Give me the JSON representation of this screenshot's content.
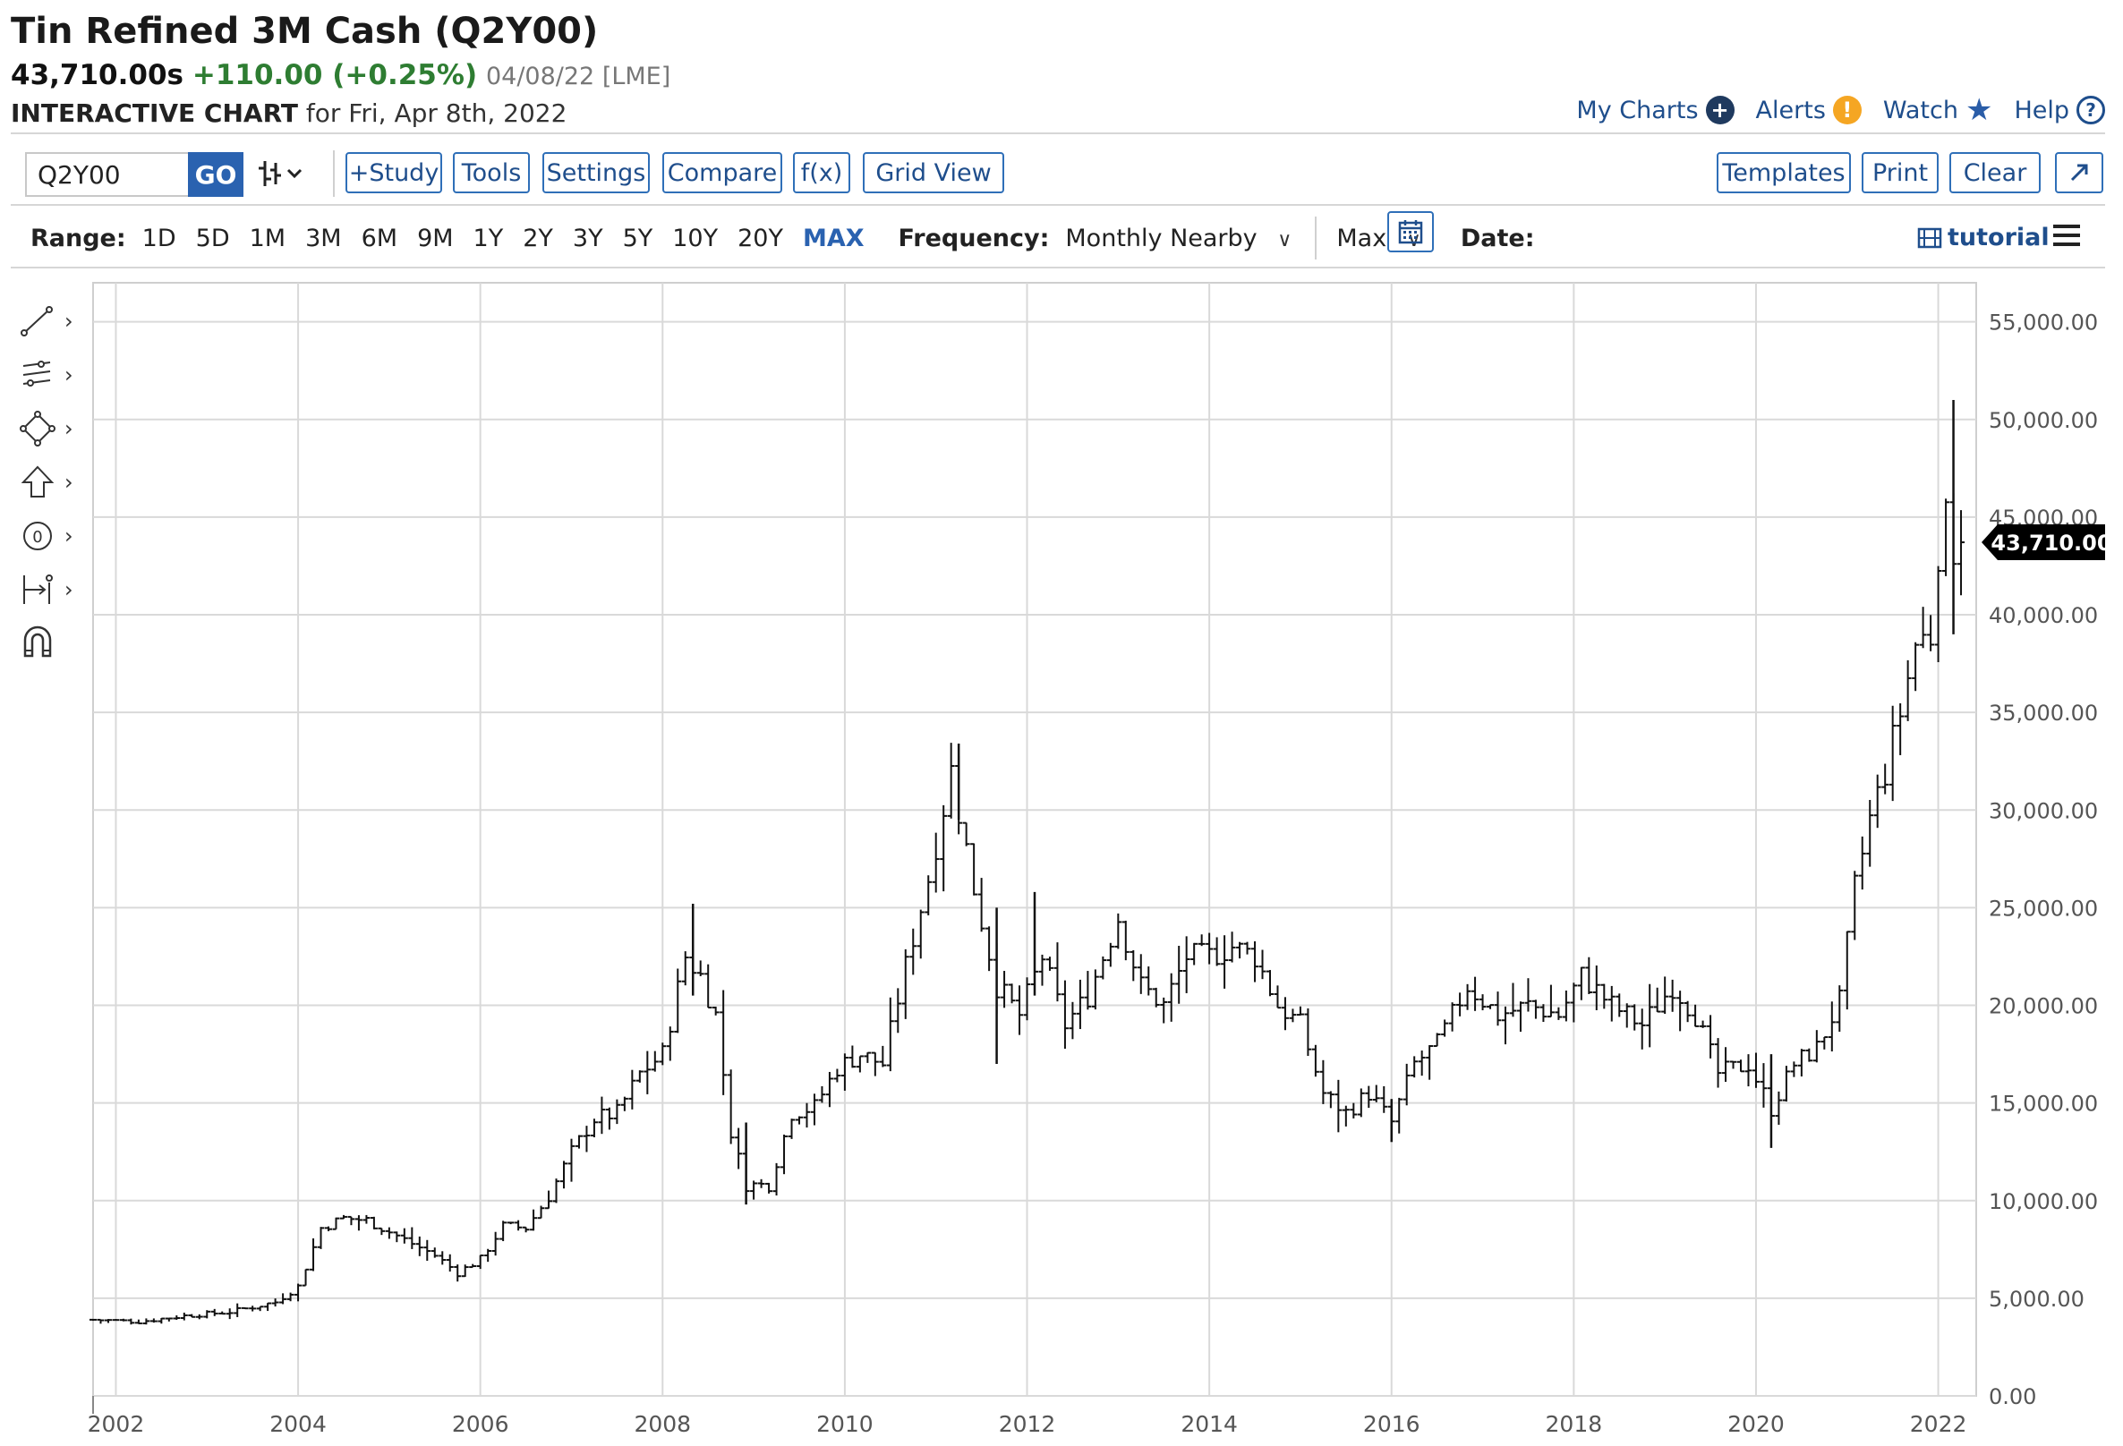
{
  "header": {
    "title": "Tin Refined 3M Cash (Q2Y00)",
    "last_price": "43,710.00s",
    "change": "+110.00 (+0.25%)",
    "quote_date": "04/08/22 [LME]",
    "interactive_chart_label": "INTERACTIVE CHART",
    "for_date": "for Fri, Apr 8th, 2022"
  },
  "top_links": {
    "my_charts": "My Charts",
    "alerts": "Alerts",
    "watch": "Watch",
    "help": "Help"
  },
  "toolbar": {
    "symbol_value": "Q2Y00",
    "go_label": "GO",
    "study_label": "+Study",
    "tools_label": "Tools",
    "settings_label": "Settings",
    "compare_label": "Compare",
    "fx_label": "f(x)",
    "grid_view_label": "Grid View",
    "templates_label": "Templates",
    "print_label": "Print",
    "clear_label": "Clear",
    "expand_icon": "expand-icon"
  },
  "range_bar": {
    "range_label": "Range:",
    "ranges": [
      "1D",
      "5D",
      "1M",
      "3M",
      "6M",
      "9M",
      "1Y",
      "2Y",
      "3Y",
      "5Y",
      "10Y",
      "20Y",
      "MAX"
    ],
    "active_range": "MAX",
    "frequency_label": "Frequency:",
    "frequency_value": "Monthly Nearby",
    "max_value": "Max",
    "date_label": "Date:",
    "tutorial_label": "tutorial"
  },
  "drawing_tools": [
    "line-tool-icon",
    "fib-tool-icon",
    "shape-tool-icon",
    "arrow-tool-icon",
    "annotation-tool-icon",
    "measure-tool-icon",
    "magnet-icon"
  ],
  "colors": {
    "accent_blue": "#2a62b0",
    "positive_green": "#2e7d32",
    "bar_color": "#111111",
    "grid": "#d9d9d9"
  },
  "chart_data": {
    "type": "ohlc",
    "frequency": "monthly",
    "y_ticks": [
      "0.00",
      "5,000.00",
      "10,000.00",
      "15,000.00",
      "20,000.00",
      "25,000.00",
      "30,000.00",
      "35,000.00",
      "40,000.00",
      "45,000.00",
      "50,000.00",
      "55,000.00"
    ],
    "ylim": [
      0,
      57000
    ],
    "x_ticks": [
      "2002",
      "2004",
      "2006",
      "2008",
      "2010",
      "2012",
      "2014",
      "2016",
      "2018",
      "2020",
      "2022"
    ],
    "xlim": [
      "2001-10",
      "2022-06"
    ],
    "last_price_label": "43,710.00",
    "last_price": 43710,
    "grid": true,
    "closes": [
      {
        "d": "2001-10",
        "v": 3900
      },
      {
        "d": "2002-04",
        "v": 3800
      },
      {
        "d": "2002-10",
        "v": 4100
      },
      {
        "d": "2003-04",
        "v": 4300
      },
      {
        "d": "2003-10",
        "v": 4800
      },
      {
        "d": "2004-01",
        "v": 5600
      },
      {
        "d": "2004-04",
        "v": 8600
      },
      {
        "d": "2004-07",
        "v": 9100
      },
      {
        "d": "2004-10",
        "v": 9000
      },
      {
        "d": "2005-01",
        "v": 8400
      },
      {
        "d": "2005-04",
        "v": 7800
      },
      {
        "d": "2005-07",
        "v": 7200
      },
      {
        "d": "2005-10",
        "v": 6300
      },
      {
        "d": "2006-01",
        "v": 7000
      },
      {
        "d": "2006-04",
        "v": 8700
      },
      {
        "d": "2006-07",
        "v": 8600
      },
      {
        "d": "2006-10",
        "v": 10200
      },
      {
        "d": "2007-01",
        "v": 12500
      },
      {
        "d": "2007-04",
        "v": 14200
      },
      {
        "d": "2007-07",
        "v": 14500
      },
      {
        "d": "2007-10",
        "v": 16500
      },
      {
        "d": "2008-01",
        "v": 17500
      },
      {
        "d": "2008-04",
        "v": 22500
      },
      {
        "d": "2008-06",
        "v": 21500
      },
      {
        "d": "2008-08",
        "v": 19500
      },
      {
        "d": "2008-10",
        "v": 13500
      },
      {
        "d": "2008-12",
        "v": 10800
      },
      {
        "d": "2009-03",
        "v": 10800
      },
      {
        "d": "2009-06",
        "v": 14500
      },
      {
        "d": "2009-09",
        "v": 14800
      },
      {
        "d": "2009-12",
        "v": 16800
      },
      {
        "d": "2010-03",
        "v": 17500
      },
      {
        "d": "2010-06",
        "v": 17000
      },
      {
        "d": "2010-09",
        "v": 22000
      },
      {
        "d": "2010-12",
        "v": 26500
      },
      {
        "d": "2011-03",
        "v": 32000
      },
      {
        "d": "2011-06",
        "v": 26000
      },
      {
        "d": "2011-09",
        "v": 21000
      },
      {
        "d": "2011-12",
        "v": 19500
      },
      {
        "d": "2012-03",
        "v": 22500
      },
      {
        "d": "2012-06",
        "v": 19000
      },
      {
        "d": "2012-09",
        "v": 20500
      },
      {
        "d": "2013-01",
        "v": 24500
      },
      {
        "d": "2013-04",
        "v": 21000
      },
      {
        "d": "2013-07",
        "v": 20000
      },
      {
        "d": "2013-10",
        "v": 22500
      },
      {
        "d": "2014-01",
        "v": 22500
      },
      {
        "d": "2014-04",
        "v": 23000
      },
      {
        "d": "2014-07",
        "v": 22500
      },
      {
        "d": "2014-10",
        "v": 20000
      },
      {
        "d": "2015-01",
        "v": 19000
      },
      {
        "d": "2015-04",
        "v": 15500
      },
      {
        "d": "2015-07",
        "v": 14500
      },
      {
        "d": "2015-10",
        "v": 15500
      },
      {
        "d": "2016-01",
        "v": 14000
      },
      {
        "d": "2016-04",
        "v": 17000
      },
      {
        "d": "2016-07",
        "v": 18000
      },
      {
        "d": "2016-11",
        "v": 21000
      },
      {
        "d": "2017-03",
        "v": 19500
      },
      {
        "d": "2017-07",
        "v": 20000
      },
      {
        "d": "2017-11",
        "v": 19500
      },
      {
        "d": "2018-02",
        "v": 21500
      },
      {
        "d": "2018-06",
        "v": 20000
      },
      {
        "d": "2018-10",
        "v": 19000
      },
      {
        "d": "2019-02",
        "v": 21000
      },
      {
        "d": "2019-05",
        "v": 19500
      },
      {
        "d": "2019-08",
        "v": 16500
      },
      {
        "d": "2019-12",
        "v": 17000
      },
      {
        "d": "2020-03",
        "v": 14700
      },
      {
        "d": "2020-06",
        "v": 17000
      },
      {
        "d": "2020-09",
        "v": 17800
      },
      {
        "d": "2020-12",
        "v": 20200
      },
      {
        "d": "2021-02",
        "v": 26000
      },
      {
        "d": "2021-04",
        "v": 29500
      },
      {
        "d": "2021-06",
        "v": 32000
      },
      {
        "d": "2021-08",
        "v": 35000
      },
      {
        "d": "2021-10",
        "v": 38500
      },
      {
        "d": "2021-12",
        "v": 39000
      },
      {
        "d": "2022-01",
        "v": 43500
      },
      {
        "d": "2022-02",
        "v": 44500
      },
      {
        "d": "2022-03",
        "v": 43600
      },
      {
        "d": "2022-04",
        "v": 43710
      }
    ],
    "spikes": [
      {
        "d": "2008-05",
        "high": 25200,
        "low": 20500
      },
      {
        "d": "2008-12",
        "high": 14000,
        "low": 9800
      },
      {
        "d": "2011-04",
        "high": 33400,
        "low": 29500
      },
      {
        "d": "2011-09",
        "high": 25000,
        "low": 17000
      },
      {
        "d": "2012-02",
        "high": 25800,
        "low": 20500
      },
      {
        "d": "2016-01",
        "high": 15200,
        "low": 13000
      },
      {
        "d": "2020-03",
        "high": 17500,
        "low": 12700
      },
      {
        "d": "2022-03",
        "high": 51000,
        "low": 39000
      }
    ]
  }
}
